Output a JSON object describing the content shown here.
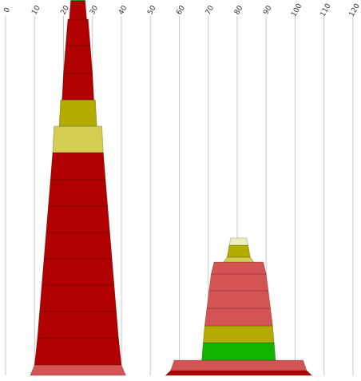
{
  "chart_data": {
    "type": "bar",
    "title": "",
    "xlabel": "",
    "ylabel": "",
    "xlim": [
      0,
      120
    ],
    "x_ticks": [
      0,
      10,
      20,
      30,
      40,
      50,
      60,
      70,
      80,
      90,
      100,
      110,
      120
    ],
    "x_tick_labels": [
      "0",
      "10",
      "20",
      "30",
      "40",
      "50",
      "60",
      "70",
      "80",
      "90",
      "100",
      "110",
      "120"
    ],
    "grid": true,
    "legend": "none",
    "series": [
      {
        "center": 25,
        "segments": [
          {
            "bottom_width": 33,
            "top_width": 30,
            "color": "#d45454"
          },
          {
            "bottom_width": 30,
            "top_width": 28,
            "color": "#b00000"
          },
          {
            "bottom_width": 28,
            "top_width": 26.5,
            "color": "#b00000"
          },
          {
            "bottom_width": 26.5,
            "top_width": 25,
            "color": "#b00000"
          },
          {
            "bottom_width": 25,
            "top_width": 23.5,
            "color": "#b00000"
          },
          {
            "bottom_width": 23.5,
            "top_width": 22,
            "color": "#b00000"
          },
          {
            "bottom_width": 22,
            "top_width": 20.5,
            "color": "#b00000"
          },
          {
            "bottom_width": 20.5,
            "top_width": 19,
            "color": "#b00000"
          },
          {
            "bottom_width": 19,
            "top_width": 17.5,
            "color": "#b00000"
          },
          {
            "bottom_width": 17.5,
            "top_width": 16.5,
            "color": "#d3cd52"
          },
          {
            "bottom_width": 13,
            "top_width": 12,
            "color": "#b3ab00"
          },
          {
            "bottom_width": 11,
            "top_width": 10,
            "color": "#b00000"
          },
          {
            "bottom_width": 10,
            "top_width": 8.5,
            "color": "#b00000"
          },
          {
            "bottom_width": 8.5,
            "top_width": 7,
            "color": "#b00000"
          },
          {
            "bottom_width": 6,
            "top_width": 5,
            "color": "#b00000"
          },
          {
            "bottom_width": 5,
            "top_width": 3.5,
            "color": "#10b400"
          }
        ]
      },
      {
        "center": 80.5,
        "segments": [
          {
            "bottom_width": 50.5,
            "top_width": 47,
            "color": "#b00000"
          },
          {
            "bottom_width": 47,
            "top_width": 44.5,
            "color": "#d45454"
          },
          {
            "bottom_width": 25.5,
            "top_width": 24.5,
            "color": "#10b400"
          },
          {
            "bottom_width": 24.5,
            "top_width": 23.5,
            "color": "#b3ab00"
          },
          {
            "bottom_width": 23.5,
            "top_width": 22,
            "color": "#d45454"
          },
          {
            "bottom_width": 22,
            "top_width": 20.5,
            "color": "#d45454"
          },
          {
            "bottom_width": 20.5,
            "top_width": 19,
            "color": "#d45454"
          },
          {
            "bottom_width": 19,
            "top_width": 17,
            "color": "#d45454"
          },
          {
            "bottom_width": 10.5,
            "top_width": 8,
            "color": "#d3cd52"
          },
          {
            "bottom_width": 8,
            "top_width": 6.5,
            "color": "#b3ab00"
          },
          {
            "bottom_width": 6.5,
            "top_width": 5.5,
            "color": "#efefbe"
          }
        ]
      }
    ]
  }
}
